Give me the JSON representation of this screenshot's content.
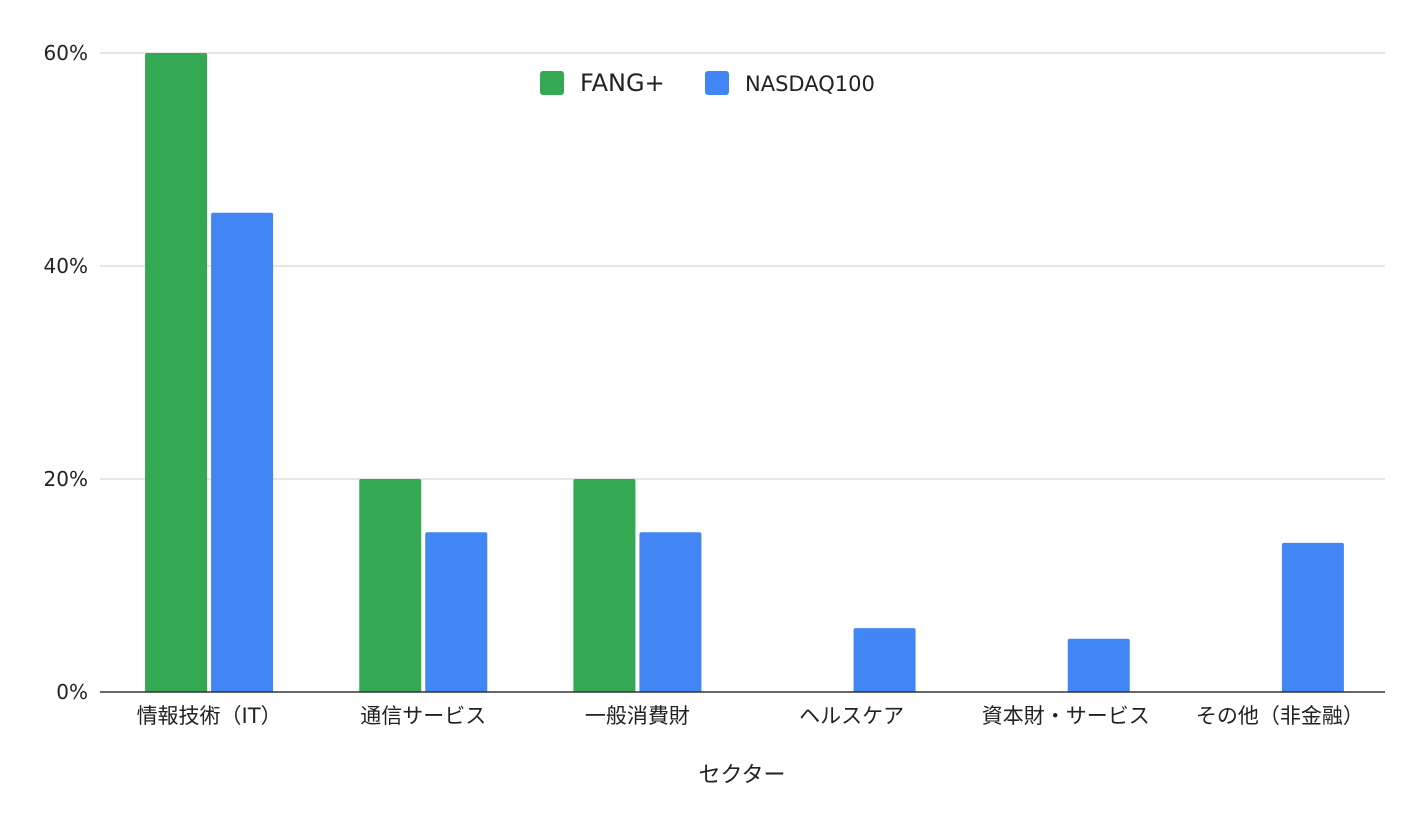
{
  "chart_data": {
    "type": "bar",
    "categories": [
      "情報技術（IT）",
      "通信サービス",
      "一般消費財",
      "ヘルスケア",
      "資本財・サービス",
      "その他（非金融）"
    ],
    "series": [
      {
        "name": "FANG+",
        "values": [
          60,
          20,
          20,
          null,
          null,
          null
        ],
        "color": "#34a853"
      },
      {
        "name": "NASDAQ100",
        "values": [
          45,
          15,
          15,
          6,
          5,
          14
        ],
        "color": "#4285f4"
      }
    ],
    "title": "",
    "xlabel": "セクター",
    "ylabel": "",
    "ylim": [
      0,
      60
    ],
    "yticks": [
      0,
      20,
      40,
      60
    ],
    "ytick_labels": [
      "0%",
      "20%",
      "40%",
      "60%"
    ],
    "grid": true,
    "legend_position": "top-center"
  }
}
